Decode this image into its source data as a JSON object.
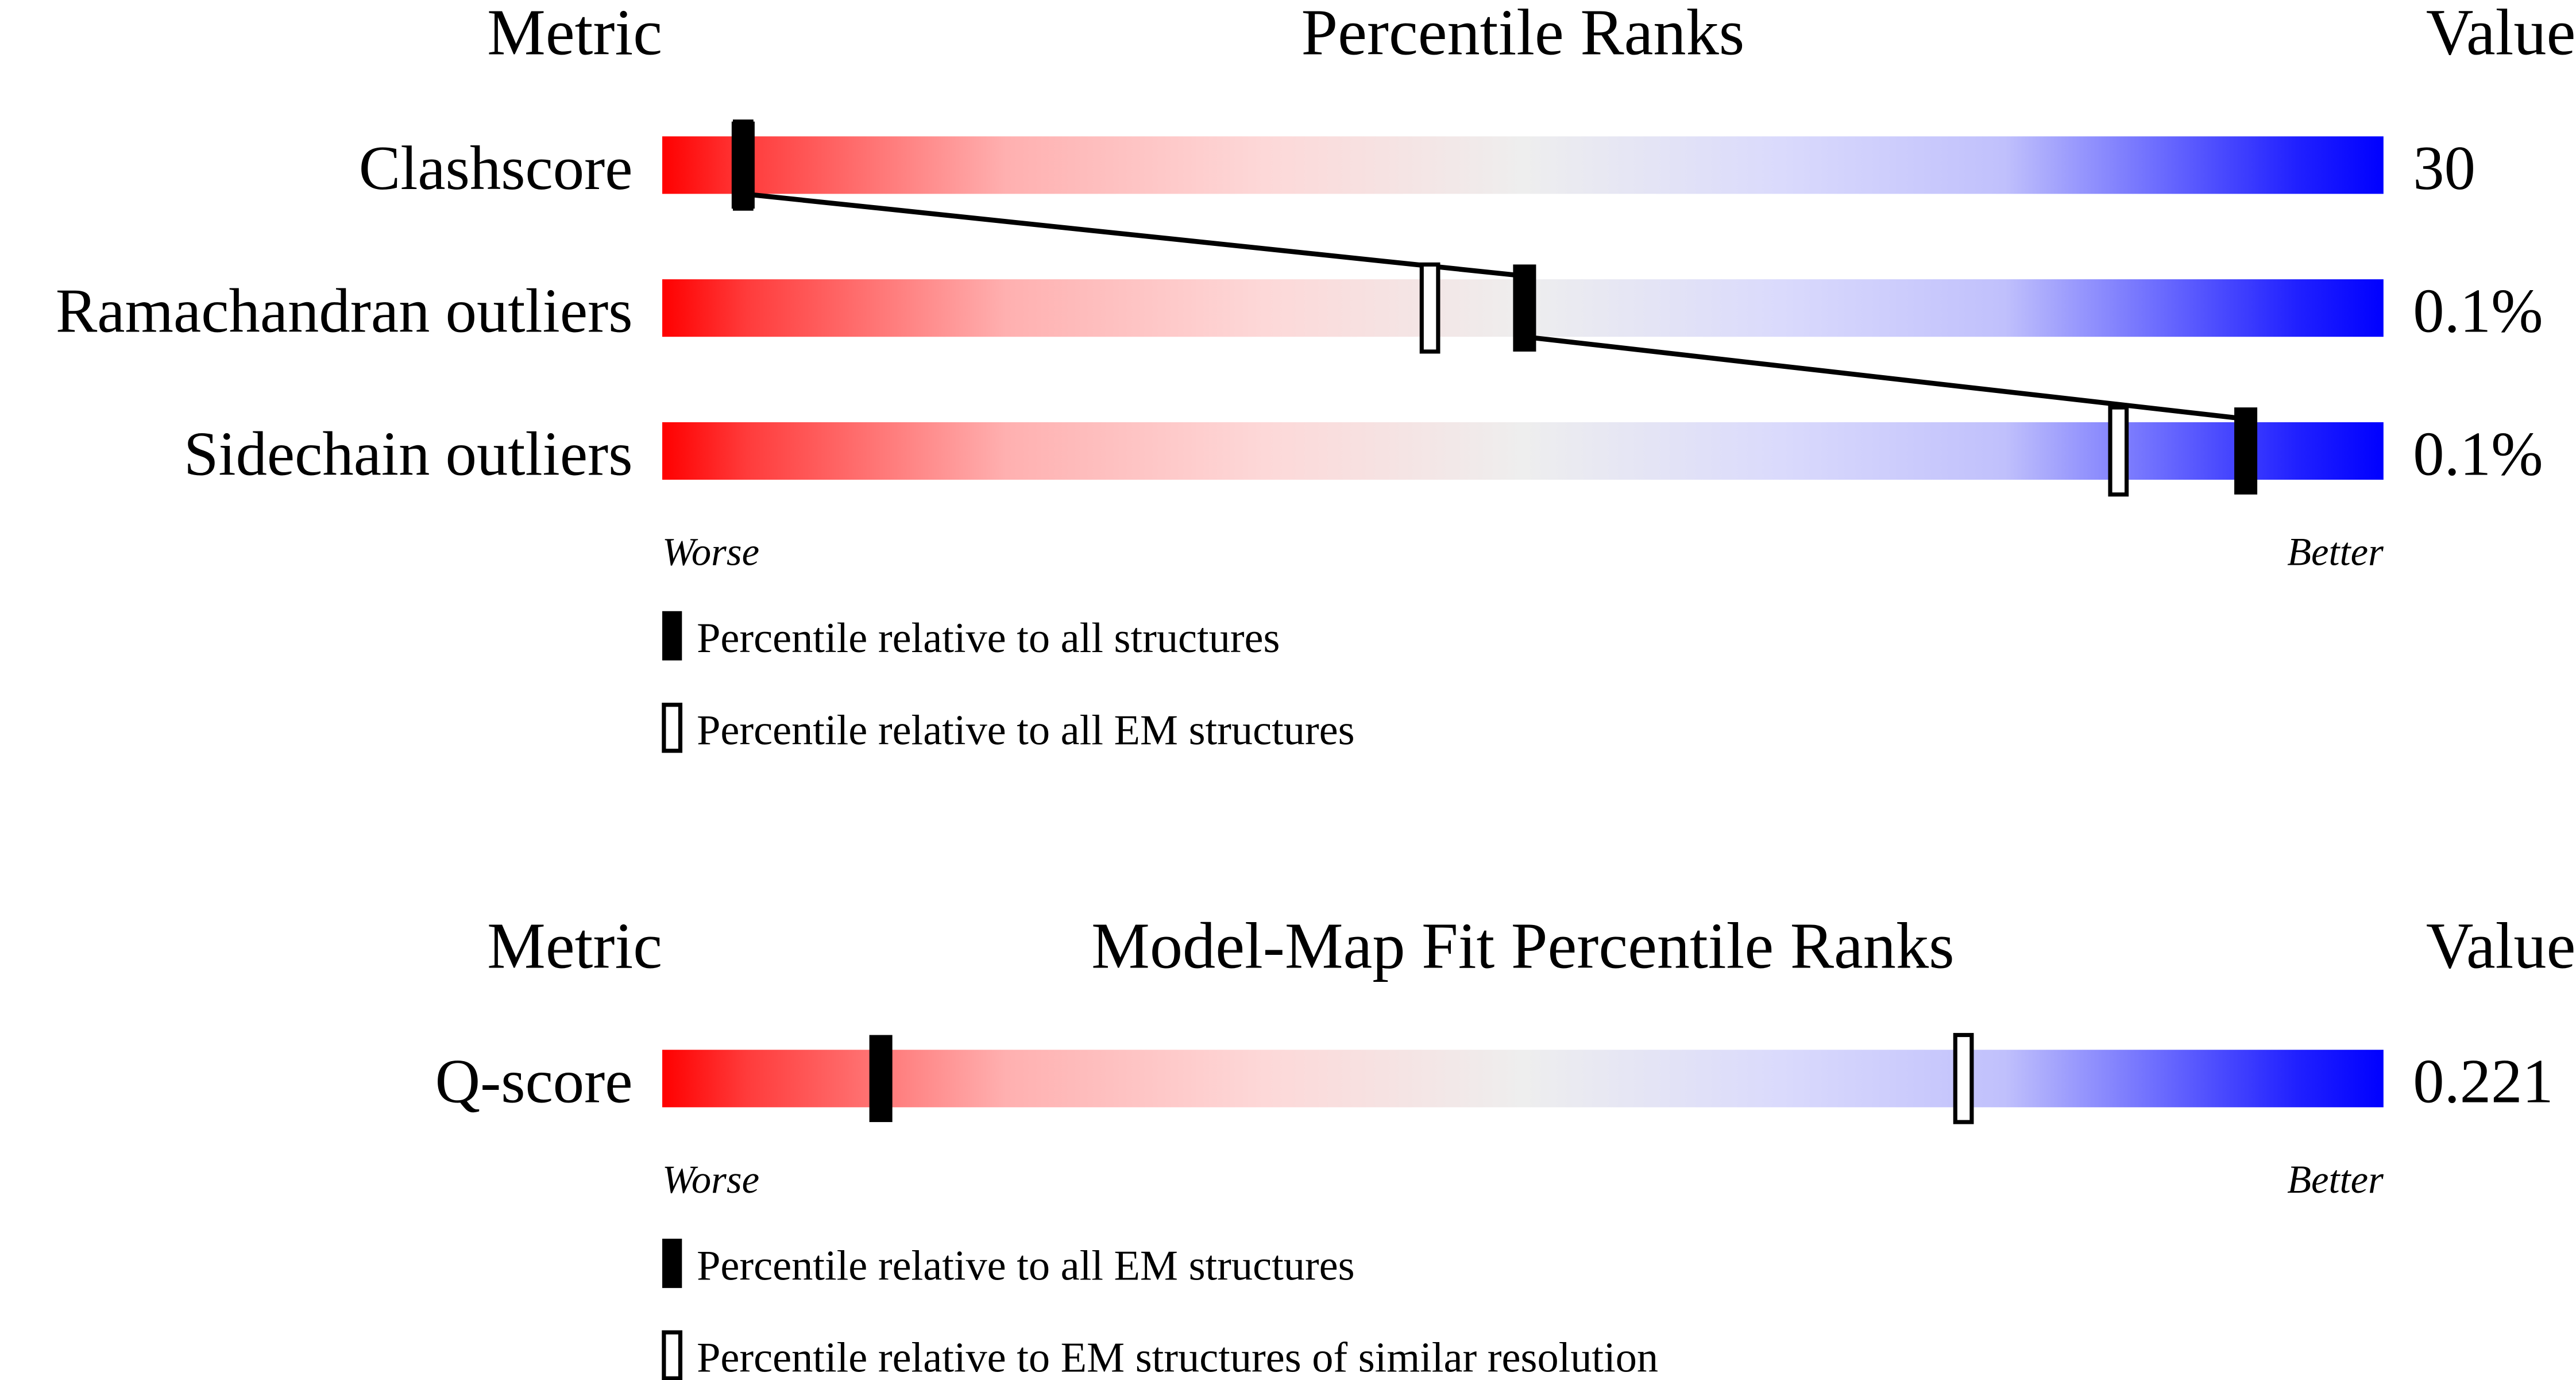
{
  "chart_data": [
    {
      "type": "percentile-slider",
      "headers": {
        "metric": "Metric",
        "title": "Percentile Ranks",
        "value": "Value"
      },
      "metrics": [
        {
          "name": "Clashscore",
          "value": "30",
          "percentile_all": 4.7,
          "percentile_em": 4.7
        },
        {
          "name": "Ramachandran outliers",
          "value": "0.1%",
          "percentile_all": 50.1,
          "percentile_em": 44.6
        },
        {
          "name": "Sidechain outliers",
          "value": "0.1%",
          "percentile_all": 92.0,
          "percentile_em": 84.6
        }
      ],
      "xlim": [
        0,
        100
      ],
      "worse_label": "Worse",
      "better_label": "Better",
      "legend": {
        "filled": "Percentile relative to all structures",
        "open": "Percentile relative to all EM structures"
      },
      "colors": {
        "worse": "#ff0000",
        "middle": "#eeeeee",
        "better": "#0000ff"
      }
    },
    {
      "type": "percentile-slider",
      "headers": {
        "metric": "Metric",
        "title": "Model-Map Fit Percentile Ranks",
        "value": "Value"
      },
      "metrics": [
        {
          "name": "Q-score",
          "value": "0.221",
          "percentile_all": 12.7,
          "percentile_em": 75.6
        }
      ],
      "xlim": [
        0,
        100
      ],
      "worse_label": "Worse",
      "better_label": "Better",
      "legend": {
        "filled": "Percentile relative to all EM structures",
        "open": "Percentile relative to EM structures of similar resolution"
      },
      "colors": {
        "worse": "#ff0000",
        "middle": "#eeeeee",
        "better": "#0000ff"
      }
    }
  ]
}
